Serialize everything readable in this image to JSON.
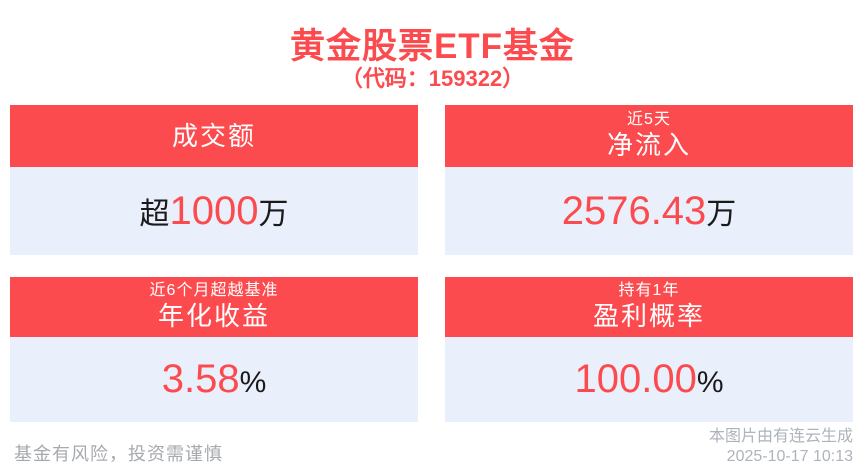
{
  "header": {
    "title": "黄金股票ETF基金",
    "subtitle": "（代码：159322）"
  },
  "colors": {
    "accent_red": "#FC4B4E",
    "card_body_bg": "#EAF0FB",
    "header_text": "#FFFFFF",
    "value_text": "#1A1A1C",
    "footer_gray": "#A6A9AE",
    "background": "#FFFFFF"
  },
  "cards": [
    {
      "tag": "",
      "label": "成交额",
      "value_prefix": "超",
      "value": "1000",
      "value_suffix": "万"
    },
    {
      "tag": "近5天",
      "label": "净流入",
      "value_prefix": "",
      "value": "2576.43",
      "value_suffix": "万"
    },
    {
      "tag": "近6个月超越基准",
      "label": "年化收益",
      "value_prefix": "",
      "value": "3.58",
      "value_suffix": "%"
    },
    {
      "tag": "持有1年",
      "label": "盈利概率",
      "value_prefix": "",
      "value": "100.00",
      "value_suffix": "%"
    }
  ],
  "footer": {
    "disclaimer": "基金有风险，投资需谨慎",
    "credit": "本图片由有连云生成",
    "timestamp": "2025-10-17 10:13"
  }
}
